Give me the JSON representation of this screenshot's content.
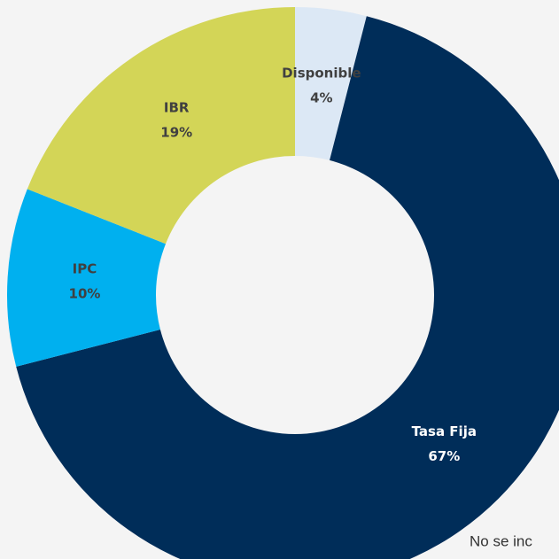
{
  "chart_data": {
    "type": "donut",
    "categories": [
      "Disponible",
      "Tasa Fija",
      "IPC",
      "IBR"
    ],
    "values": [
      4,
      67,
      10,
      19
    ],
    "value_labels": [
      "4%",
      "67%",
      "10%",
      "19%"
    ],
    "colors": [
      "#dce8f5",
      "#002d59",
      "#00b0ef",
      "#d3d557"
    ],
    "note": "No se inc"
  }
}
